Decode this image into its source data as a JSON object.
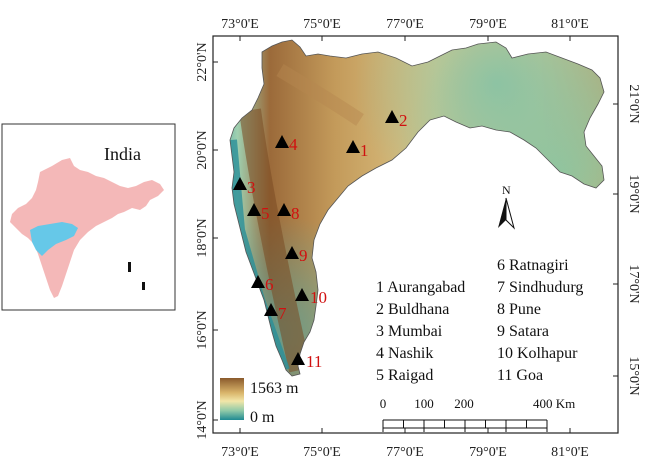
{
  "map": {
    "longitude_ticks": [
      "73°0'E",
      "75°0'E",
      "77°0'E",
      "79°0'E",
      "81°0'E"
    ],
    "latitude_ticks_left": [
      "22°0'N",
      "20°0'N",
      "18°0'N",
      "16°0'N",
      "14°0'N"
    ],
    "latitude_ticks_right": [
      "21°0'N",
      "19°0'N",
      "17°0'N",
      "15°0'N"
    ],
    "north_arrow_label": "N",
    "elevation_legend": {
      "max_label": "1563 m",
      "min_label": "0 m",
      "colors": {
        "high": "#8a5a2c",
        "mid": "#f2e6a8",
        "low": "#1f8a92"
      }
    },
    "scale_bar": {
      "labels": [
        "0",
        "100",
        "200",
        "400 Km"
      ]
    },
    "sites": [
      {
        "num": "1",
        "name": "Aurangabad"
      },
      {
        "num": "2",
        "name": "Buldhana"
      },
      {
        "num": "3",
        "name": "Mumbai"
      },
      {
        "num": "4",
        "name": "Nashik"
      },
      {
        "num": "5",
        "name": "Raigad"
      },
      {
        "num": "6",
        "name": "Ratnagiri"
      },
      {
        "num": "7",
        "name": "Sindhudurg"
      },
      {
        "num": "8",
        "name": "Pune"
      },
      {
        "num": "9",
        "name": "Satara"
      },
      {
        "num": "10",
        "name": "Kolhapur"
      },
      {
        "num": "11",
        "name": "Goa"
      }
    ],
    "legend_list": [
      "1 Aurangabad",
      "2 Buldhana",
      "3 Mumbai",
      "4 Nashik",
      "5 Raigad",
      "6 Ratnagiri",
      "7 Sindhudurg",
      "8 Pune",
      "9 Satara",
      "10 Kolhapur",
      "11 Goa"
    ]
  },
  "inset": {
    "label": "India",
    "colors": {
      "country": "#f4b8b8",
      "highlight": "#66c8e8"
    }
  }
}
